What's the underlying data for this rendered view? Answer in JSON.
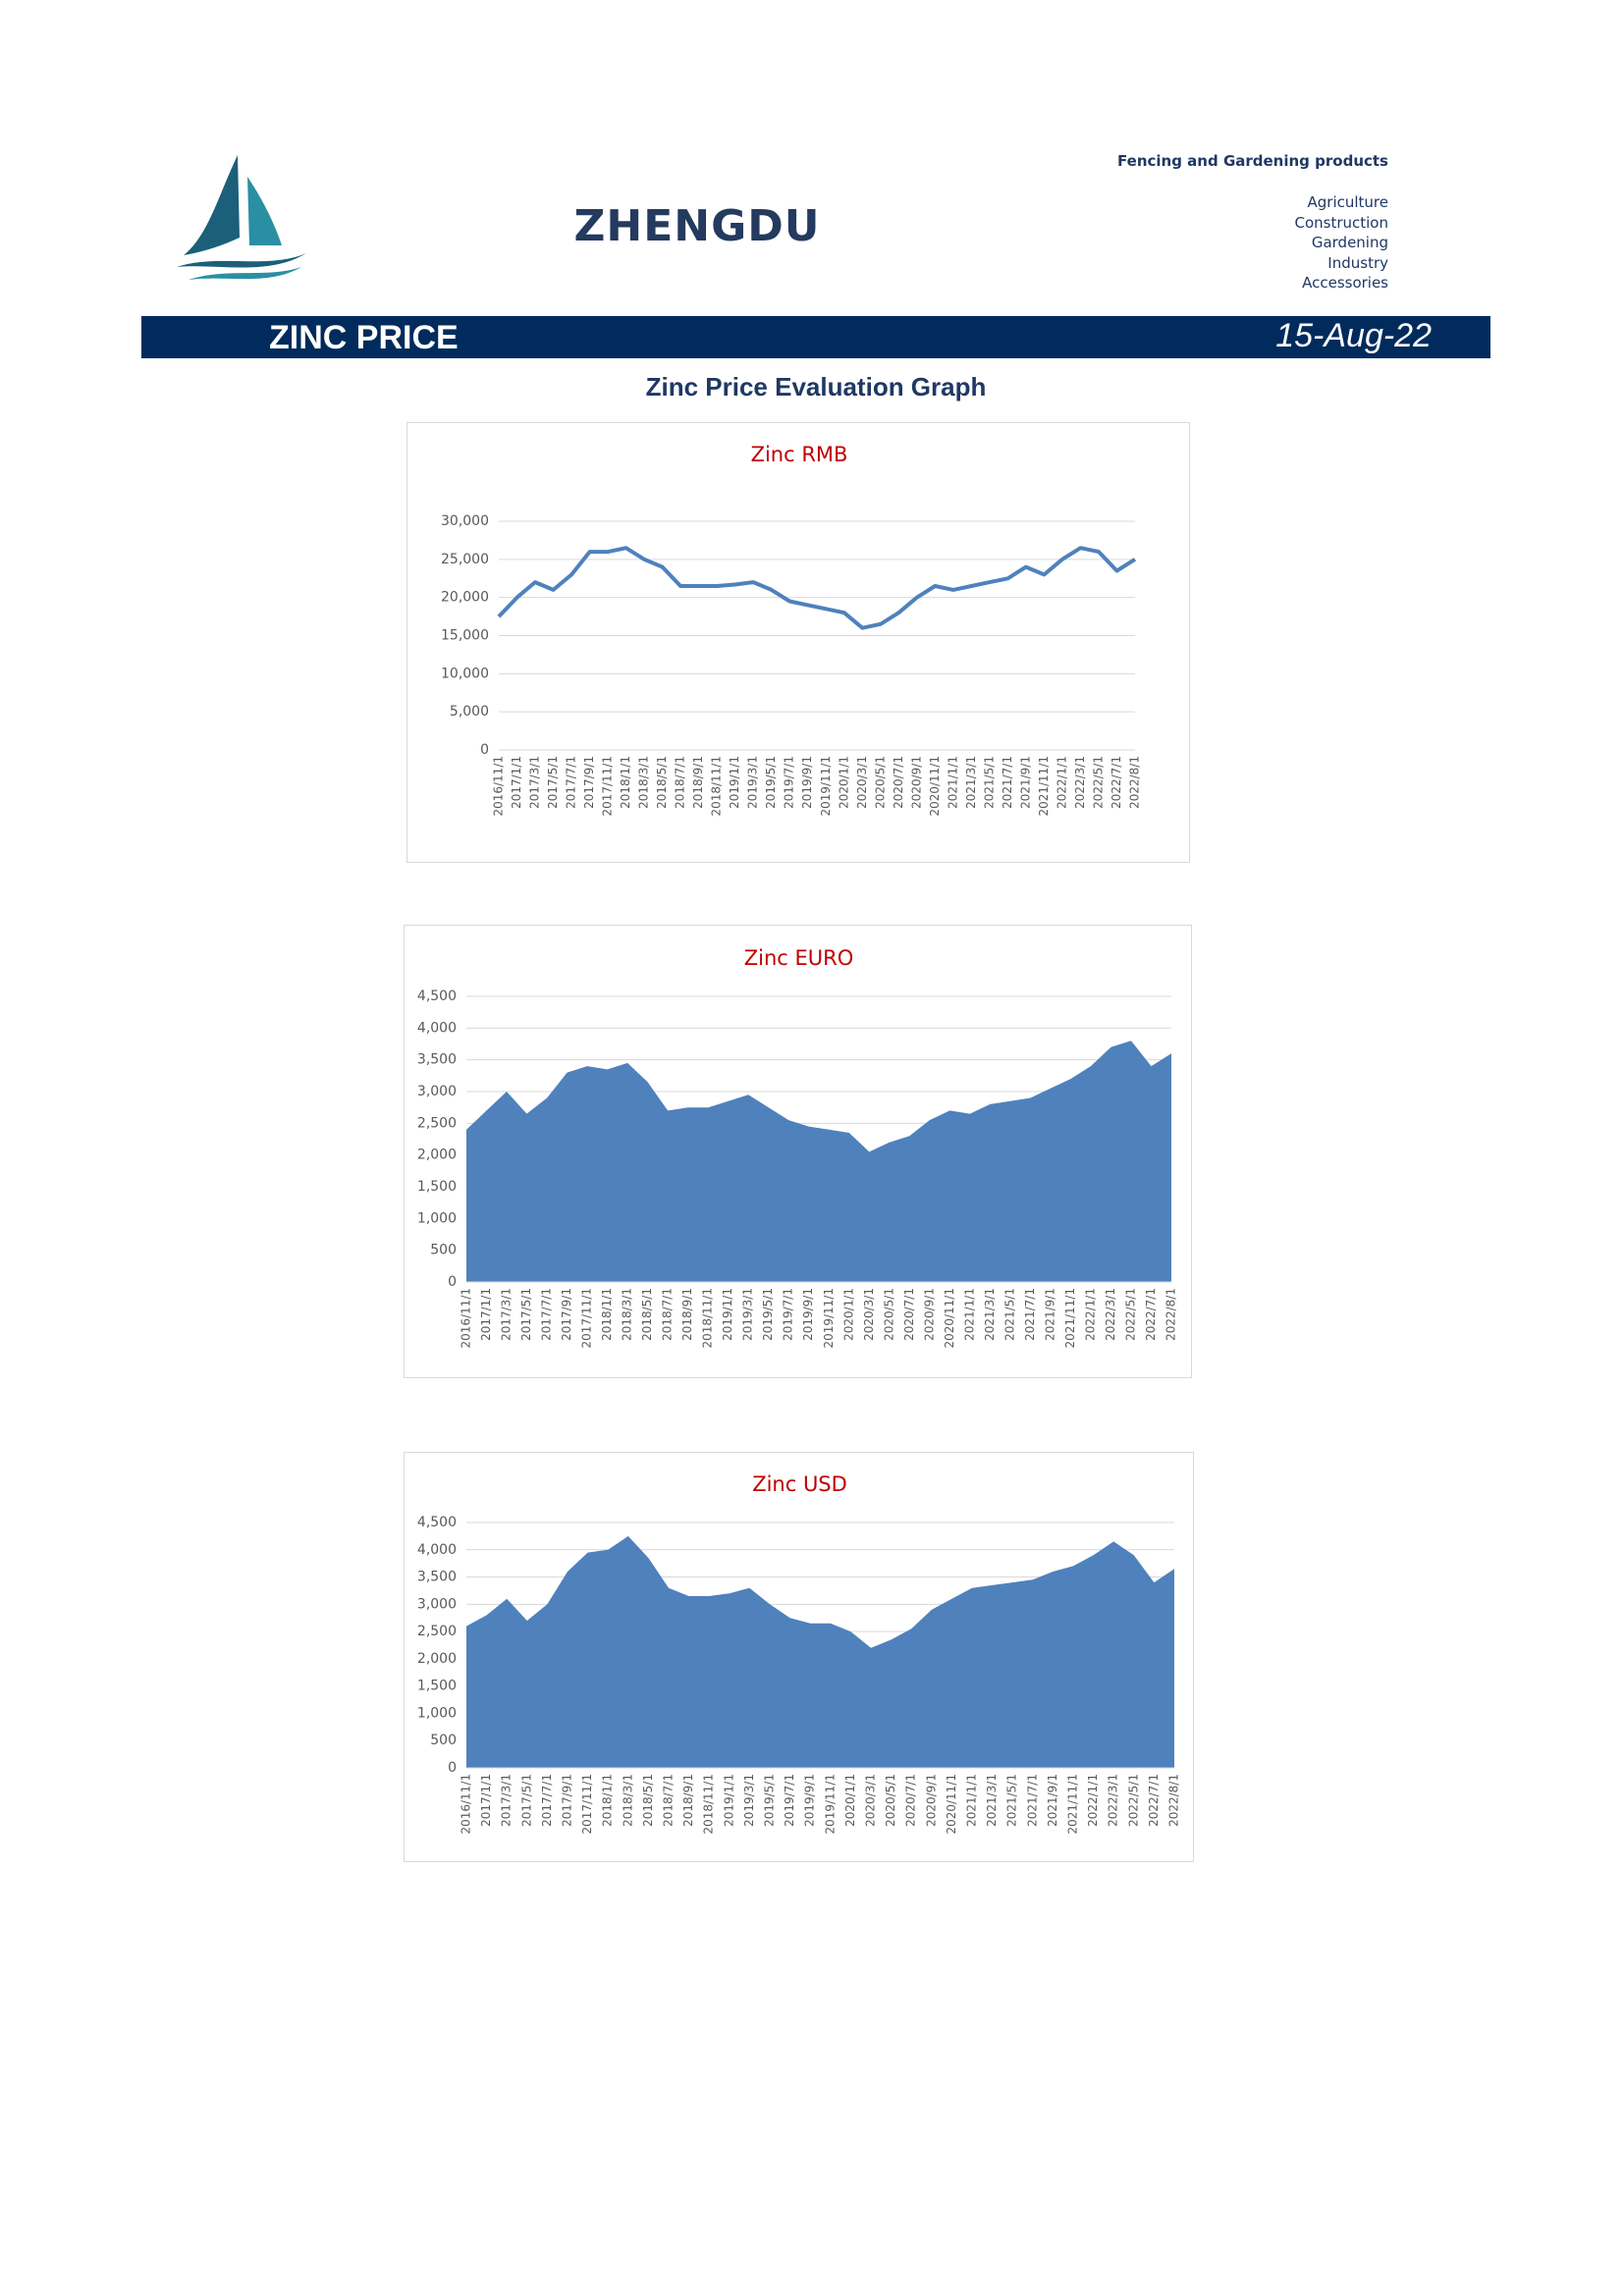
{
  "header": {
    "company": "ZHENGDU",
    "tagline": "Fencing and Gardening products",
    "products": [
      "Agriculture",
      "Construction",
      "Gardening",
      "Industry",
      "Accessories"
    ]
  },
  "banner": {
    "title": "ZINC PRICE",
    "date": "15-Aug-22"
  },
  "subtitle": "Zinc Price Evaluation Graph",
  "chart_data": [
    {
      "type": "line",
      "title": "Zinc RMB",
      "color": "#4f81bd",
      "grid": true,
      "categories": [
        "2016/11/1",
        "2017/1/1",
        "2017/3/1",
        "2017/5/1",
        "2017/7/1",
        "2017/9/1",
        "2017/11/1",
        "2018/1/1",
        "2018/3/1",
        "2018/5/1",
        "2018/7/1",
        "2018/9/1",
        "2018/11/1",
        "2019/1/1",
        "2019/3/1",
        "2019/5/1",
        "2019/7/1",
        "2019/9/1",
        "2019/11/1",
        "2020/1/1",
        "2020/3/1",
        "2020/5/1",
        "2020/7/1",
        "2020/9/1",
        "2020/11/1",
        "2021/1/1",
        "2021/3/1",
        "2021/5/1",
        "2021/7/1",
        "2021/9/1",
        "2021/11/1",
        "2022/1/1",
        "2022/3/1",
        "2022/5/1",
        "2022/7/1",
        "2022/8/1"
      ],
      "values": [
        17500,
        20000,
        22000,
        21000,
        23000,
        26000,
        26000,
        26500,
        25000,
        24000,
        21500,
        21500,
        21500,
        21700,
        22000,
        21000,
        19500,
        19000,
        18500,
        18000,
        16000,
        16500,
        18000,
        20000,
        21500,
        21000,
        21500,
        22000,
        22500,
        24000,
        23000,
        25000,
        26500,
        26000,
        23500,
        25000
      ],
      "ylim": [
        0,
        30000
      ],
      "yticks": [
        0,
        {
          "value": 5000,
          "label": "5,000"
        },
        {
          "value": 10000,
          "label": "10,000"
        },
        {
          "value": 15000,
          "label": "15,000"
        },
        {
          "value": 20000,
          "label": "20,000"
        },
        {
          "value": 25000,
          "label": "25,000"
        },
        {
          "value": 30000,
          "label": "30,000"
        }
      ]
    },
    {
      "type": "area",
      "title": "Zinc EURO",
      "color": "#4f81bd",
      "grid": true,
      "categories": [
        "2016/11/1",
        "2017/1/1",
        "2017/3/1",
        "2017/5/1",
        "2017/7/1",
        "2017/9/1",
        "2017/11/1",
        "2018/1/1",
        "2018/3/1",
        "2018/5/1",
        "2018/7/1",
        "2018/9/1",
        "2018/11/1",
        "2019/1/1",
        "2019/3/1",
        "2019/5/1",
        "2019/7/1",
        "2019/9/1",
        "2019/11/1",
        "2020/1/1",
        "2020/3/1",
        "2020/5/1",
        "2020/7/1",
        "2020/9/1",
        "2020/11/1",
        "2021/1/1",
        "2021/3/1",
        "2021/5/1",
        "2021/7/1",
        "2021/9/1",
        "2021/11/1",
        "2022/1/1",
        "2022/3/1",
        "2022/5/1",
        "2022/7/1",
        "2022/8/1"
      ],
      "values": [
        2400,
        2700,
        3000,
        2650,
        2900,
        3300,
        3400,
        3350,
        3450,
        3150,
        2700,
        2750,
        2750,
        2850,
        2950,
        2750,
        2550,
        2450,
        2400,
        2350,
        2050,
        2200,
        2300,
        2550,
        2700,
        2650,
        2800,
        2850,
        2900,
        3050,
        3200,
        3400,
        3700,
        3800,
        3400,
        3600
      ],
      "ylim": [
        0,
        4500
      ],
      "yticks": [
        0,
        500,
        {
          "value": 1000,
          "label": "1,000"
        },
        {
          "value": 1500,
          "label": "1,500"
        },
        {
          "value": 2000,
          "label": "2,000"
        },
        {
          "value": 2500,
          "label": "2,500"
        },
        {
          "value": 3000,
          "label": "3,000"
        },
        {
          "value": 3500,
          "label": "3,500"
        },
        {
          "value": 4000,
          "label": "4,000"
        },
        {
          "value": 4500,
          "label": "4,500"
        }
      ]
    },
    {
      "type": "area",
      "title": "Zinc USD",
      "color": "#4f81bd",
      "grid": true,
      "categories": [
        "2016/11/1",
        "2017/1/1",
        "2017/3/1",
        "2017/5/1",
        "2017/7/1",
        "2017/9/1",
        "2017/11/1",
        "2018/1/1",
        "2018/3/1",
        "2018/5/1",
        "2018/7/1",
        "2018/9/1",
        "2018/11/1",
        "2019/1/1",
        "2019/3/1",
        "2019/5/1",
        "2019/7/1",
        "2019/9/1",
        "2019/11/1",
        "2020/1/1",
        "2020/3/1",
        "2020/5/1",
        "2020/7/1",
        "2020/9/1",
        "2020/11/1",
        "2021/1/1",
        "2021/3/1",
        "2021/5/1",
        "2021/7/1",
        "2021/9/1",
        "2021/11/1",
        "2022/1/1",
        "2022/3/1",
        "2022/5/1",
        "2022/7/1",
        "2022/8/1"
      ],
      "values": [
        2600,
        2800,
        3100,
        2700,
        3000,
        3600,
        3950,
        4000,
        4250,
        3850,
        3300,
        3150,
        3150,
        3200,
        3300,
        3000,
        2750,
        2650,
        2650,
        2500,
        2200,
        2350,
        2550,
        2900,
        3100,
        3300,
        3350,
        3400,
        3450,
        3600,
        3700,
        3900,
        4150,
        3900,
        3400,
        3650
      ],
      "ylim": [
        0,
        4500
      ],
      "yticks": [
        0,
        500,
        {
          "value": 1000,
          "label": "1,000"
        },
        {
          "value": 1500,
          "label": "1,500"
        },
        {
          "value": 2000,
          "label": "2,000"
        },
        {
          "value": 2500,
          "label": "2,500"
        },
        {
          "value": 3000,
          "label": "3,000"
        },
        {
          "value": 3500,
          "label": "3,500"
        },
        {
          "value": 4000,
          "label": "4,000"
        },
        {
          "value": 4500,
          "label": "4,500"
        }
      ]
    }
  ]
}
